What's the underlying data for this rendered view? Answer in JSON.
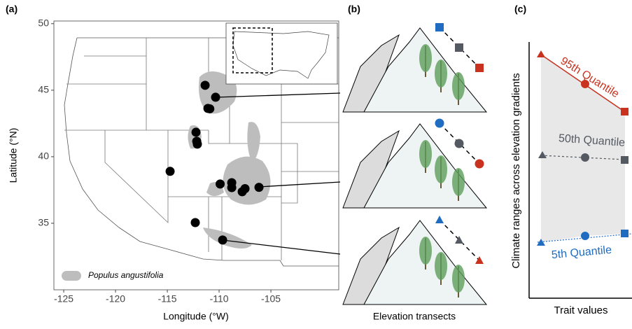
{
  "chart_data": {
    "type": "scatter",
    "panel_label": "(a)",
    "xlabel": "Longitude (°W)",
    "ylabel": "Latitude (°N)",
    "xlim": [
      -125.95,
      -98.45
    ],
    "ylim": [
      30.0,
      50.2
    ],
    "xticks": [
      -125,
      -120,
      -115,
      -110,
      -105
    ],
    "yticks": [
      35,
      40,
      45,
      50
    ],
    "grid": false,
    "color": "#000000",
    "range_color": "#bdbdbd",
    "legend_label": "Populus angustifolia",
    "legend_position": "bottom-left",
    "x": [
      -111.35,
      -110.34,
      -111.08,
      -110.9,
      -112.23,
      -112.16,
      -112.1,
      -114.73,
      -109.9,
      -108.78,
      -108.78,
      -107.77,
      -107.5,
      -106.15,
      -112.3,
      -109.66
    ],
    "y": [
      45.37,
      44.47,
      43.63,
      43.6,
      41.84,
      41.16,
      40.95,
      38.9,
      37.95,
      38.05,
      37.68,
      37.37,
      37.6,
      37.7,
      35.05,
      33.74
    ]
  },
  "panel_b": {
    "panel_label": "(b)",
    "xlabel": "Elevation transects"
  },
  "panel_c": {
    "panel_label": "(c)",
    "xlabel": "Trait values",
    "ylabel": "Climate ranges across elevation gradients",
    "lines": [
      {
        "name": "95th Quantile",
        "color": "#c8321e"
      },
      {
        "name": "50th Quantile",
        "color": "#555a62"
      },
      {
        "name": "5th Quantile",
        "color": "#1f6cc0"
      }
    ]
  }
}
